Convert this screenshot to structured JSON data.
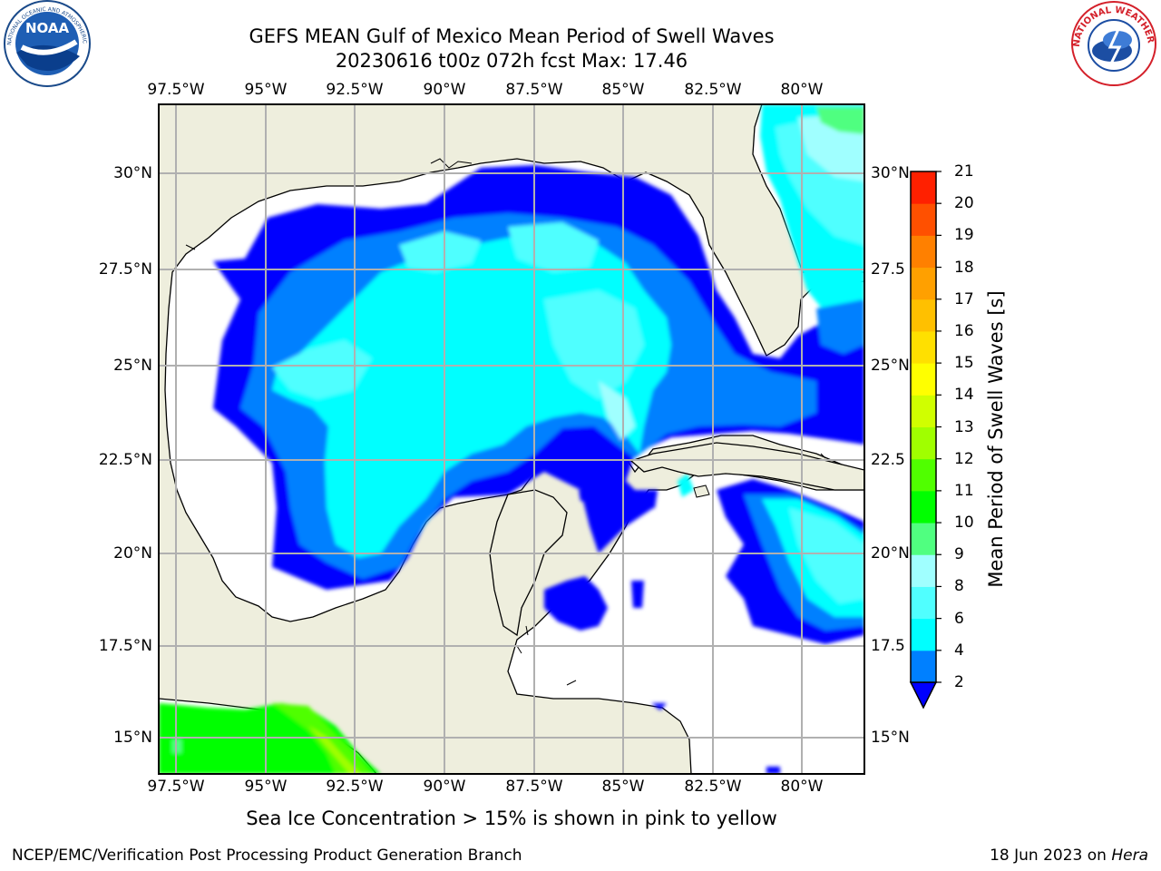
{
  "title_line1": "GEFS MEAN Gulf of Mexico Mean Period of Swell Waves",
  "title_line2": "20230616 t00z 072h fcst   Max: 17.46",
  "lon_ticks": [
    "97.5°W",
    "95°W",
    "92.5°W",
    "90°W",
    "87.5°W",
    "85°W",
    "82.5°W",
    "80°W"
  ],
  "lat_ticks_left": [
    "30°N",
    "27.5°N",
    "25°N",
    "22.5°N",
    "20°N",
    "17.5°N",
    "15°N"
  ],
  "lat_ticks_right": [
    "30°N",
    "27.5",
    "25°N",
    "22.5",
    "20°N",
    "17.5",
    "15°N"
  ],
  "colorbar": {
    "label": "Mean Period of Swell Waves [s]",
    "ticks": [
      "2",
      "4",
      "6",
      "8",
      "9",
      "10",
      "11",
      "12",
      "13",
      "14",
      "15",
      "16",
      "17",
      "18",
      "19",
      "20",
      "21"
    ],
    "colors": [
      "#0000ff",
      "#0080ff",
      "#00ffff",
      "#50ffff",
      "#a0ffff",
      "#50ff80",
      "#00ff00",
      "#50ff00",
      "#a0ff00",
      "#d0ff00",
      "#ffff00",
      "#ffe000",
      "#ffc000",
      "#ffa000",
      "#ff8000",
      "#ff5000",
      "#ff2000",
      "#ff0000"
    ],
    "extend": "min"
  },
  "colors": {
    "land": "#eeeedd",
    "ocean": "#ffffff",
    "grid": "#b0b0b0"
  },
  "caption": "Sea Ice Concentration > 15% is shown in pink to yellow",
  "footer_left": "NCEP/EMC/Verification Post Processing Product Generation Branch",
  "footer_right_date": "18 Jun 2023 on",
  "footer_right_host": "Hera",
  "logos": {
    "left": "NOAA",
    "right": "NATIONAL WEATHER SERVICE"
  }
}
